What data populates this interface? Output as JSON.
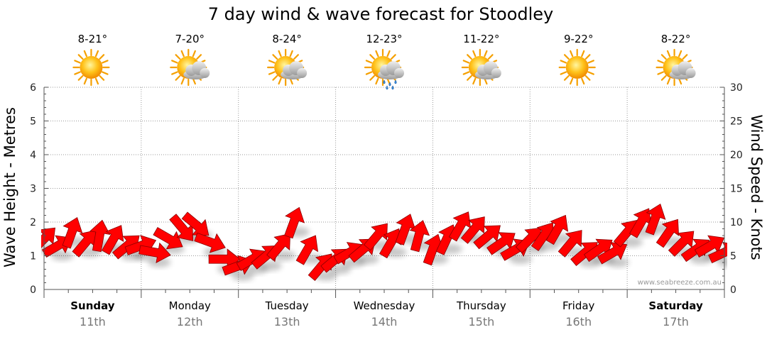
{
  "chart_data": {
    "type": "line",
    "title": "7 day wind & wave forecast for Stoodley",
    "y_left_label": "Wave Height - Metres",
    "y_right_label": "Wind Speed - Knots",
    "y_left_range": [
      0,
      6
    ],
    "y_right_range": [
      0,
      30
    ],
    "y_left_ticks": [
      "0",
      "1",
      "2",
      "3",
      "4",
      "5",
      "6"
    ],
    "y_right_ticks": [
      "0",
      "5",
      "10",
      "15",
      "20",
      "25",
      "30"
    ],
    "grid": true,
    "credit": "www.seabreeze.com.au",
    "days": [
      {
        "name": "Sunday",
        "date": "11th",
        "bold": true,
        "temp": "8-21°",
        "weather_icon": "sunny-icon"
      },
      {
        "name": "Monday",
        "date": "12th",
        "bold": false,
        "temp": "7-20°",
        "weather_icon": "partly-cloudy-icon"
      },
      {
        "name": "Tuesday",
        "date": "13th",
        "bold": false,
        "temp": "8-24°",
        "weather_icon": "partly-cloudy-icon"
      },
      {
        "name": "Wednesday",
        "date": "14th",
        "bold": false,
        "temp": "12-23°",
        "weather_icon": "rain-shower-icon"
      },
      {
        "name": "Thursday",
        "date": "15th",
        "bold": false,
        "temp": "11-22°",
        "weather_icon": "partly-cloudy-icon"
      },
      {
        "name": "Friday",
        "date": "16th",
        "bold": false,
        "temp": "9-22°",
        "weather_icon": "sunny-icon"
      },
      {
        "name": "Saturday",
        "date": "17th",
        "bold": true,
        "temp": "8-22°",
        "weather_icon": "partly-cloudy-icon"
      }
    ],
    "wind_series": {
      "name": "Wind Speed",
      "color": "#ff0000",
      "day_offset": [
        0,
        0.143,
        0.286,
        0.429,
        0.571,
        0.714,
        0.857,
        1.0,
        1.143,
        1.286,
        1.429,
        1.571,
        1.714,
        1.857,
        2.0,
        2.143,
        2.286,
        2.429,
        2.571,
        2.714,
        2.857,
        3.0,
        3.143,
        3.286,
        3.429,
        3.571,
        3.714,
        3.857,
        4.0,
        4.143,
        4.286,
        4.429,
        4.571,
        4.714,
        4.857,
        5.0,
        5.143,
        5.286,
        5.429,
        5.571,
        5.714,
        5.857,
        6.0,
        6.143,
        6.286,
        6.429,
        6.571,
        6.714,
        6.857,
        7.0
      ],
      "knots": [
        7.5,
        6.5,
        8.5,
        7.0,
        8.0,
        7.5,
        6.5,
        6.5,
        5.5,
        7.5,
        9.0,
        9.5,
        7.0,
        4.5,
        3.5,
        4.5,
        5.0,
        6.5,
        10.0,
        6.0,
        3.5,
        4.5,
        5.5,
        6.0,
        8.0,
        7.0,
        9.0,
        8.0,
        6.0,
        7.5,
        9.5,
        9.0,
        8.0,
        7.0,
        6.0,
        7.5,
        8.0,
        9.0,
        7.0,
        5.5,
        6.0,
        5.5,
        8.5,
        10.0,
        10.5,
        8.5,
        7.0,
        6.0,
        6.5,
        5.5
      ],
      "direction_deg": [
        225,
        240,
        200,
        220,
        190,
        210,
        230,
        250,
        280,
        300,
        320,
        310,
        290,
        270,
        250,
        240,
        230,
        220,
        200,
        210,
        220,
        230,
        240,
        230,
        220,
        210,
        200,
        195,
        200,
        205,
        210,
        220,
        230,
        235,
        240,
        225,
        215,
        210,
        220,
        230,
        235,
        240,
        220,
        210,
        200,
        215,
        225,
        235,
        240,
        245
      ]
    }
  }
}
